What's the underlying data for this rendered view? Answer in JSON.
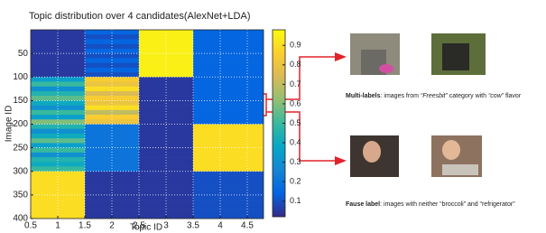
{
  "chart_data": {
    "type": "heatmap",
    "title": "Topic distribution over 4 candidates(AlexNet+LDA)",
    "x_label": "Topic ID",
    "y_label": "Image ID",
    "x": [
      1,
      2,
      3,
      4
    ],
    "row_ids": [
      0,
      10,
      20,
      30,
      40,
      50,
      60,
      70,
      80,
      90,
      100,
      110,
      120,
      130,
      140,
      150,
      160,
      170,
      180,
      190,
      200,
      210,
      220,
      230,
      240,
      250,
      260,
      270,
      280,
      290,
      300,
      310,
      320,
      330,
      340,
      350,
      360,
      370,
      380,
      390
    ],
    "row_height": 10,
    "values": [
      [
        0.05,
        0.15,
        0.95,
        0.15
      ],
      [
        0.05,
        0.1,
        0.95,
        0.15
      ],
      [
        0.05,
        0.15,
        0.95,
        0.15
      ],
      [
        0.05,
        0.1,
        0.95,
        0.15
      ],
      [
        0.05,
        0.15,
        0.95,
        0.15
      ],
      [
        0.05,
        0.1,
        0.95,
        0.15
      ],
      [
        0.05,
        0.15,
        0.95,
        0.15
      ],
      [
        0.05,
        0.1,
        0.95,
        0.15
      ],
      [
        0.05,
        0.15,
        0.95,
        0.15
      ],
      [
        0.05,
        0.1,
        0.95,
        0.15
      ],
      [
        0.35,
        0.85,
        0.05,
        0.15
      ],
      [
        0.5,
        0.8,
        0.05,
        0.15
      ],
      [
        0.3,
        0.9,
        0.05,
        0.15
      ],
      [
        0.45,
        0.75,
        0.05,
        0.15
      ],
      [
        0.55,
        0.85,
        0.05,
        0.15
      ],
      [
        0.4,
        0.8,
        0.05,
        0.15
      ],
      [
        0.3,
        0.9,
        0.05,
        0.15
      ],
      [
        0.5,
        0.7,
        0.05,
        0.15
      ],
      [
        0.35,
        0.85,
        0.05,
        0.15
      ],
      [
        0.6,
        0.8,
        0.05,
        0.15
      ],
      [
        0.45,
        0.2,
        0.05,
        0.9
      ],
      [
        0.3,
        0.2,
        0.05,
        0.9
      ],
      [
        0.4,
        0.2,
        0.05,
        0.9
      ],
      [
        0.55,
        0.2,
        0.05,
        0.9
      ],
      [
        0.35,
        0.2,
        0.05,
        0.9
      ],
      [
        0.5,
        0.2,
        0.05,
        0.9
      ],
      [
        0.3,
        0.2,
        0.05,
        0.9
      ],
      [
        0.45,
        0.2,
        0.05,
        0.9
      ],
      [
        0.4,
        0.2,
        0.05,
        0.9
      ],
      [
        0.5,
        0.2,
        0.05,
        0.9
      ],
      [
        0.9,
        0.05,
        0.05,
        0.1
      ],
      [
        0.9,
        0.05,
        0.05,
        0.1
      ],
      [
        0.9,
        0.05,
        0.05,
        0.1
      ],
      [
        0.9,
        0.05,
        0.05,
        0.1
      ],
      [
        0.9,
        0.05,
        0.05,
        0.1
      ],
      [
        0.9,
        0.05,
        0.05,
        0.1
      ],
      [
        0.9,
        0.05,
        0.05,
        0.1
      ],
      [
        0.9,
        0.05,
        0.05,
        0.1
      ],
      [
        0.9,
        0.05,
        0.05,
        0.1
      ],
      [
        0.9,
        0.05,
        0.05,
        0.1
      ]
    ],
    "xlim": [
      0.5,
      4.8
    ],
    "ylim": [
      0,
      400
    ],
    "y_reversed": true,
    "xticks": [
      0.5,
      1,
      1.5,
      2,
      2.5,
      3,
      3.5,
      4,
      4.5
    ],
    "yticks": [
      50,
      100,
      150,
      200,
      250,
      300,
      350,
      400
    ],
    "clim": [
      0.02,
      0.98
    ],
    "cticks": [
      0.1,
      0.2,
      0.3,
      0.4,
      0.5,
      0.6,
      0.7,
      0.8,
      0.9
    ],
    "grid": true
  },
  "examples": [
    {
      "bold": "Multi-labels",
      "text1": ": images  from ",
      "italic1": "“Freesbit”",
      "text2": " category with ",
      "italic2": "“cow”",
      "text3": " flavor"
    },
    {
      "bold": "Fause label",
      "text1": ": images with neither “broccoli” and “refrigerator”"
    }
  ]
}
